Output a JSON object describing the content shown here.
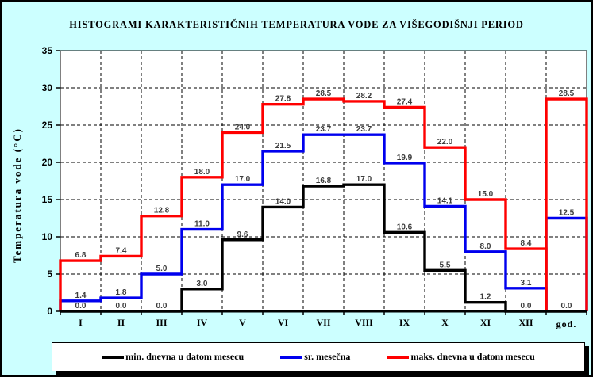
{
  "title": "HISTOGRAMI KARAKTERISTIČNIH TEMPERATURA VODE ZA VIŠEGODIŠNJI PERIOD",
  "ylabel": "Temperatura vode (°C)",
  "colors": {
    "background": "#ccffff",
    "plot_bg": "#ffffff",
    "grid": "#000000",
    "axis": "#000000",
    "value_label": "#3c3c3c",
    "min_series": "#000000",
    "avg_series": "#0000ee",
    "max_series": "#ff0000"
  },
  "chart_data": {
    "type": "line",
    "subtype": "step-histogram",
    "title": "HISTOGRAMI KARAKTERISTIČNIH TEMPERATURA VODE ZA VIŠEGODIŠNJI PERIOD",
    "xlabel": "",
    "ylabel": "Temperatura vode (°C)",
    "ylim": [
      0,
      35
    ],
    "yticks": [
      0,
      5,
      10,
      15,
      20,
      25,
      30,
      35
    ],
    "grid": true,
    "legend_position": "bottom",
    "categories": [
      "I",
      "II",
      "III",
      "IV",
      "V",
      "VI",
      "VII",
      "VIII",
      "IX",
      "X",
      "XI",
      "XII"
    ],
    "annual_category": "god.",
    "series": [
      {
        "id": "min",
        "name": "min. dnevna u datom mesecu",
        "color": "#000000",
        "values": [
          0.0,
          0.0,
          0.0,
          3.0,
          9.6,
          14.0,
          16.8,
          17.0,
          10.6,
          5.5,
          1.2,
          0.0
        ],
        "annual": 0.0
      },
      {
        "id": "avg",
        "name": "sr. mesečna",
        "color": "#0000ee",
        "values": [
          1.4,
          1.8,
          5.0,
          11.0,
          17.0,
          21.5,
          23.7,
          23.7,
          19.9,
          14.1,
          8.0,
          3.1
        ],
        "annual": 12.5
      },
      {
        "id": "max",
        "name": "maks. dnevna u datom mesecu",
        "color": "#ff0000",
        "values": [
          6.8,
          7.4,
          12.8,
          18.0,
          24.0,
          27.8,
          28.5,
          28.2,
          27.4,
          22.0,
          15.0,
          8.4
        ],
        "annual": 28.5
      }
    ]
  }
}
